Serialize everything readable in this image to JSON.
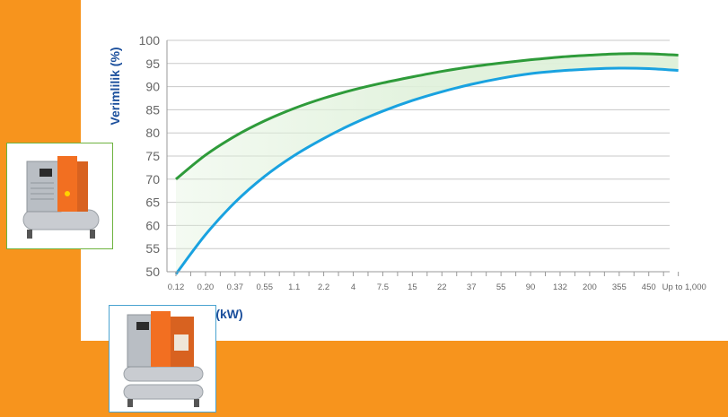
{
  "colors": {
    "background": "#f7941d",
    "card": "#ffffff",
    "upper_curve": "#2e9b3a",
    "lower_curve": "#19a2e0",
    "band_fill": "#dff1da",
    "axis_title": "#1b4f9c",
    "grid": "#c8c8c8"
  },
  "images": [
    {
      "name": "tank-mounted-compressor-photo",
      "icon": "compressor-product-image"
    },
    {
      "name": "twin-tank-compressor-photo",
      "icon": "compressor-product-image"
    }
  ],
  "chart_data": {
    "type": "area",
    "title": "",
    "xlabel": "Çıkış (kW)",
    "ylabel": "Verimlilik (%)",
    "ylim": [
      50,
      100
    ],
    "yticks": [
      "100",
      "95",
      "90",
      "85",
      "80",
      "75",
      "70",
      "65",
      "60",
      "55",
      "50"
    ],
    "categories": [
      "0.12",
      "0.20",
      "0.37",
      "0.55",
      "1.1",
      "2.2",
      "4",
      "7.5",
      "15",
      "22",
      "37",
      "55",
      "90",
      "132",
      "200",
      "355",
      "450",
      "Up to 1,000"
    ],
    "grid": true,
    "band_between_series": true,
    "series": [
      {
        "values": [
          70,
          75.2,
          79.3,
          82.6,
          85.3,
          87.5,
          89.3,
          90.8,
          92.1,
          93.3,
          94.3,
          95.1,
          95.8,
          96.4,
          96.8,
          97.1,
          97.1,
          96.8
        ],
        "color": "#2e9b3a"
      },
      {
        "values": [
          49.5,
          58,
          65,
          70.6,
          75.1,
          78.8,
          82,
          84.7,
          87,
          88.9,
          90.5,
          91.8,
          92.8,
          93.4,
          93.8,
          94,
          93.9,
          93.5
        ],
        "color": "#19a2e0"
      }
    ]
  }
}
